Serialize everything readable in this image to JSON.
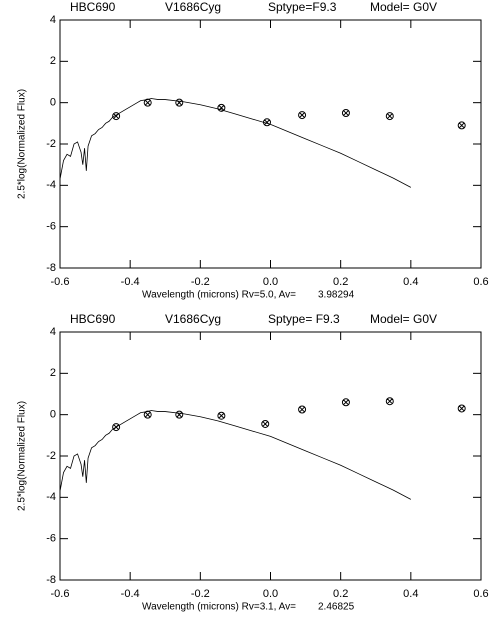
{
  "chart_data": [
    {
      "type": "scatter",
      "header": [
        "HBC690",
        "V1686Cyg",
        "Sptype=F9.3",
        "Model= G0V"
      ],
      "x_label": "Wavelength (microns) Rv=5.0, Av=",
      "av_value": 3.98294,
      "y_label": "2.5*log(Normalized Flux)",
      "xlim": [
        -0.6,
        0.6
      ],
      "xticks": [
        -0.6,
        -0.4,
        -0.2,
        {
          "value": 0,
          "label": "0.0"
        },
        0.2,
        0.4,
        0.6
      ],
      "ylim": [
        -8,
        4
      ],
      "yticks": [
        -8,
        -6,
        -4,
        -2,
        0,
        2,
        4
      ],
      "model": {
        "x": [
          -0.6,
          -0.59,
          -0.58,
          -0.57,
          -0.56,
          -0.55,
          -0.54,
          -0.535,
          -0.53,
          -0.525,
          -0.52,
          -0.51,
          -0.5,
          -0.49,
          -0.48,
          -0.47,
          -0.46,
          -0.45,
          -0.44,
          -0.42,
          -0.4,
          -0.38,
          -0.37,
          -0.35,
          -0.34,
          -0.32,
          -0.3,
          -0.25,
          -0.2,
          -0.15,
          -0.1,
          -0.05,
          0,
          0.05,
          0.1,
          0.15,
          0.2,
          0.25,
          0.3,
          0.35,
          0.4
        ],
        "y": [
          -3.7,
          -2.8,
          -2.5,
          -2.6,
          -2.0,
          -1.9,
          -2.4,
          -3.0,
          -2.2,
          -3.3,
          -2.1,
          -1.6,
          -1.5,
          -1.3,
          -1.2,
          -1.0,
          -0.9,
          -0.7,
          -0.6,
          -0.4,
          -0.2,
          0.0,
          0.1,
          0.15,
          0.2,
          0.15,
          0.15,
          0.05,
          -0.1,
          -0.3,
          -0.55,
          -0.8,
          -1.05,
          -1.4,
          -1.75,
          -2.1,
          -2.45,
          -2.85,
          -3.25,
          -3.65,
          -4.1
        ]
      },
      "observed": {
        "x": [
          -0.44,
          -0.35,
          -0.26,
          -0.14,
          -0.01,
          0.09,
          0.215,
          0.34,
          0.545
        ],
        "y": [
          -0.65,
          0.0,
          0.0,
          -0.25,
          -0.95,
          -0.6,
          -0.5,
          -0.65,
          -1.1
        ]
      }
    },
    {
      "type": "scatter",
      "header": [
        "HBC690",
        "V1686Cyg",
        "Sptype= F9.3",
        "Model= G0V"
      ],
      "x_label": "Wavelength (microns) Rv=3.1, Av=",
      "av_value": 2.46825,
      "y_label": "2.5*log(Normalized Flux)",
      "xlim": [
        -0.6,
        0.6
      ],
      "xticks": [
        -0.6,
        -0.4,
        -0.2,
        {
          "value": 0,
          "label": "0.0"
        },
        0.2,
        0.4,
        0.6
      ],
      "ylim": [
        -8,
        4
      ],
      "yticks": [
        -8,
        -6,
        -4,
        -2,
        0,
        2,
        4
      ],
      "model": {
        "x": [
          -0.6,
          -0.59,
          -0.58,
          -0.57,
          -0.56,
          -0.55,
          -0.54,
          -0.535,
          -0.53,
          -0.525,
          -0.52,
          -0.51,
          -0.5,
          -0.49,
          -0.48,
          -0.47,
          -0.46,
          -0.45,
          -0.44,
          -0.42,
          -0.4,
          -0.38,
          -0.37,
          -0.35,
          -0.34,
          -0.32,
          -0.3,
          -0.25,
          -0.2,
          -0.15,
          -0.1,
          -0.05,
          0,
          0.05,
          0.1,
          0.15,
          0.2,
          0.25,
          0.3,
          0.35,
          0.4
        ],
        "y": [
          -3.7,
          -2.8,
          -2.5,
          -2.6,
          -2.0,
          -1.9,
          -2.4,
          -3.0,
          -2.2,
          -3.3,
          -2.1,
          -1.6,
          -1.5,
          -1.3,
          -1.2,
          -1.0,
          -0.9,
          -0.7,
          -0.6,
          -0.4,
          -0.2,
          0.0,
          0.1,
          0.15,
          0.2,
          0.15,
          0.15,
          0.05,
          -0.1,
          -0.3,
          -0.55,
          -0.8,
          -1.05,
          -1.4,
          -1.75,
          -2.1,
          -2.45,
          -2.85,
          -3.25,
          -3.65,
          -4.1
        ]
      },
      "observed": {
        "x": [
          -0.44,
          -0.35,
          -0.26,
          -0.14,
          -0.015,
          0.09,
          0.215,
          0.34,
          0.545
        ],
        "y": [
          -0.6,
          0.0,
          0.0,
          -0.05,
          -0.45,
          0.25,
          0.6,
          0.65,
          0.3
        ]
      }
    }
  ]
}
